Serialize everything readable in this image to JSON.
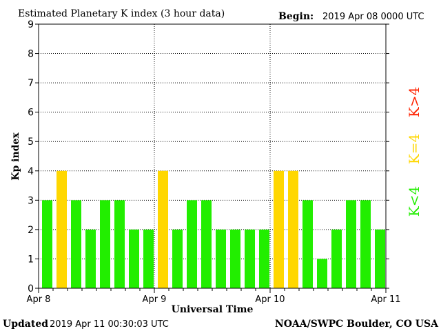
{
  "header": {
    "title": "Estimated Planetary K index (3 hour data)",
    "begin_label": "Begin:",
    "begin_value": "2019 Apr 08 0000 UTC"
  },
  "footer": {
    "updated_label": "Updated",
    "updated_value": "2019 Apr 11 00:30:03 UTC",
    "source": "NOAA/SWPC Boulder, CO USA"
  },
  "legend": {
    "items": [
      {
        "label": "K>4",
        "color": "#ff2200"
      },
      {
        "label": "K=4",
        "color": "#ffd700"
      },
      {
        "label": "K<4",
        "color": "#22ee00"
      }
    ],
    "placement": "right"
  },
  "chart_data": {
    "type": "bar",
    "xlabel": "Universal Time",
    "ylabel": "Kp index",
    "ylim": [
      0,
      9
    ],
    "yticks": [
      0,
      1,
      2,
      3,
      4,
      5,
      6,
      7,
      8,
      9
    ],
    "xtick_labels": [
      "Apr 8",
      "Apr 9",
      "Apr 10",
      "Apr 11"
    ],
    "grid": true,
    "values": [
      3,
      4,
      3,
      2,
      3,
      3,
      2,
      2,
      4,
      2,
      3,
      3,
      2,
      2,
      2,
      2,
      4,
      4,
      3,
      1,
      2,
      3,
      3,
      2
    ],
    "colors": {
      "below4": "#22ee00",
      "equal4": "#ffd700",
      "above4": "#ff2200"
    }
  }
}
